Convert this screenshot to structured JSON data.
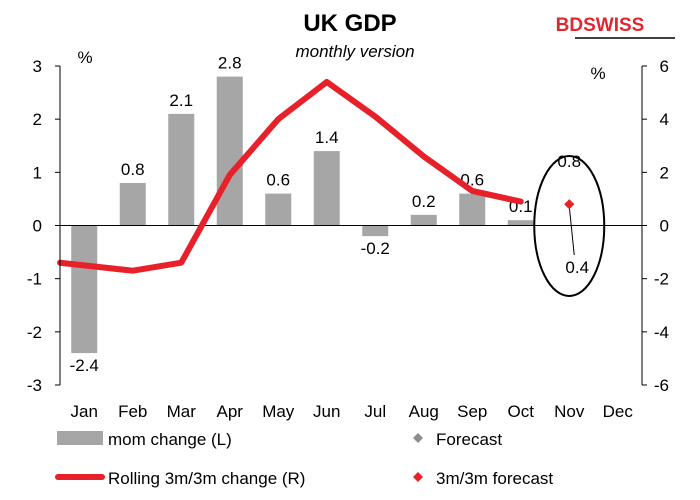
{
  "brand": {
    "prefix": "BD",
    "name": "SWISS",
    "color": "#e3262e"
  },
  "chart_data": {
    "type": "bar+line",
    "title": "UK GDP",
    "subtitle": "monthly version",
    "left_axis": {
      "unit": "%",
      "range": [
        -3,
        3
      ],
      "ticks": [
        3,
        2,
        1,
        0,
        -1,
        -2,
        -3
      ]
    },
    "right_axis": {
      "unit": "%",
      "range": [
        -6,
        6
      ],
      "ticks": [
        6,
        4,
        2,
        0,
        -2,
        -4,
        -6
      ]
    },
    "categories": [
      "Jan",
      "Feb",
      "Mar",
      "Apr",
      "May",
      "Jun",
      "Jul",
      "Aug",
      "Sep",
      "Oct",
      "Nov",
      "Dec"
    ],
    "series": [
      {
        "name": "mom change (L)",
        "kind": "bar",
        "axis": "left",
        "color": "#a6a6a6",
        "values": [
          -2.4,
          0.8,
          2.1,
          2.8,
          0.6,
          1.4,
          -0.2,
          0.2,
          0.6,
          0.1,
          null,
          null
        ],
        "labels": [
          "-2.4",
          "0.8",
          "2.1",
          "2.8",
          "0.6",
          "1.4",
          "-0.2",
          "0.2",
          "0.6",
          "0.1",
          "",
          ""
        ]
      },
      {
        "name": "Rolling 3m/3m change (R)",
        "kind": "line",
        "axis": "right",
        "color": "#e8202a",
        "values": [
          -1.4,
          -1.7,
          -1.4,
          1.9,
          4.0,
          5.4,
          4.1,
          2.6,
          1.3,
          0.9,
          null,
          null
        ]
      },
      {
        "name": "Forecast",
        "kind": "marker",
        "axis": "left",
        "color": "#8c8c8c",
        "values": [
          null,
          null,
          null,
          null,
          null,
          null,
          null,
          null,
          null,
          null,
          0.4,
          null
        ],
        "labels": [
          "",
          "",
          "",
          "",
          "",
          "",
          "",
          "",
          "",
          "",
          "0.4",
          ""
        ]
      },
      {
        "name": "3m/3m forecast",
        "kind": "marker",
        "axis": "right",
        "color": "#e8202a",
        "values": [
          null,
          null,
          null,
          null,
          null,
          null,
          null,
          null,
          null,
          null,
          0.8,
          null
        ],
        "labels": [
          "",
          "",
          "",
          "",
          "",
          "",
          "",
          "",
          "",
          "",
          "0.8",
          ""
        ]
      }
    ],
    "legend": [
      {
        "label": "mom change (L)",
        "symbol": "bar"
      },
      {
        "label": "Forecast",
        "symbol": "diamond-grey"
      },
      {
        "label": "Rolling 3m/3m change (R)",
        "symbol": "line"
      },
      {
        "label": "3m/3m forecast",
        "symbol": "diamond-red"
      }
    ],
    "legend_position": "bottom",
    "grid": false,
    "highlight": {
      "shape": "ellipse",
      "category": "Nov"
    }
  }
}
